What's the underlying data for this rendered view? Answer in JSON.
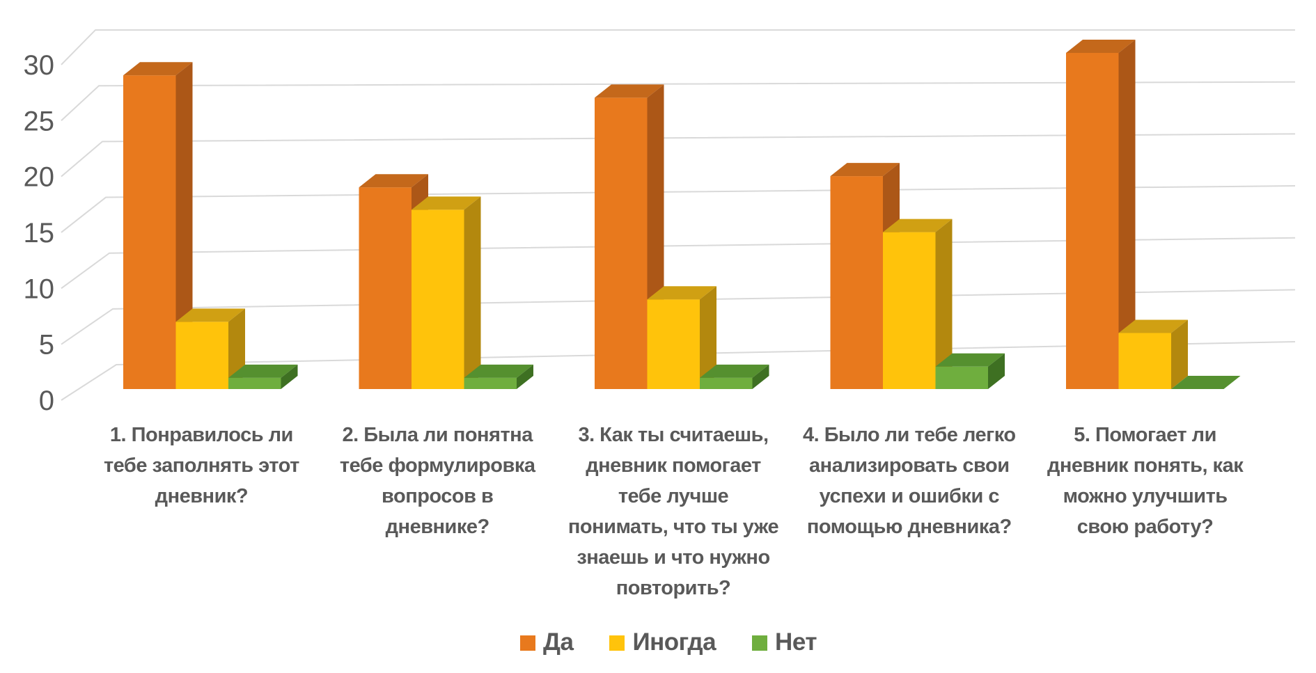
{
  "chart_data": {
    "type": "bar",
    "variant": "3d-clustered-column",
    "title": "",
    "xlabel": "",
    "ylabel": "",
    "categories": [
      "1. Понравилось ли тебе заполнять этот дневник?",
      "2. Была ли понятна тебе формулировка вопросов в дневнике?",
      "3. Как ты считаешь, дневник помогает тебе лучше понимать, что ты уже знаешь и что нужно повторить?",
      "4. Было ли тебе легко анализировать свои успехи и ошибки с помощью дневника?",
      "5. Помогает ли дневник понять, как можно улучшить свою работу?"
    ],
    "series": [
      {
        "name": "Да",
        "values": [
          28,
          18,
          26,
          19,
          30
        ],
        "color": "#E8791D",
        "color_top": "#C4681B",
        "color_side": "#AC5717"
      },
      {
        "name": "Иногда",
        "values": [
          6,
          16,
          8,
          14,
          5
        ],
        "color": "#FFC30B",
        "color_top": "#D0A013",
        "color_side": "#B3880E"
      },
      {
        "name": "Нет",
        "values": [
          1,
          1,
          1,
          2,
          0
        ],
        "color": "#6FAE3E",
        "color_top": "#55902F",
        "color_side": "#3E7022"
      }
    ],
    "yticks": [
      0,
      5,
      10,
      15,
      20,
      25,
      30
    ],
    "ylim": [
      0,
      30
    ],
    "grid": true,
    "legend_position": "bottom",
    "axis_text_color": "#595959",
    "gridline_color": "#D9D9D9",
    "background_color": "#FFFFFF"
  }
}
